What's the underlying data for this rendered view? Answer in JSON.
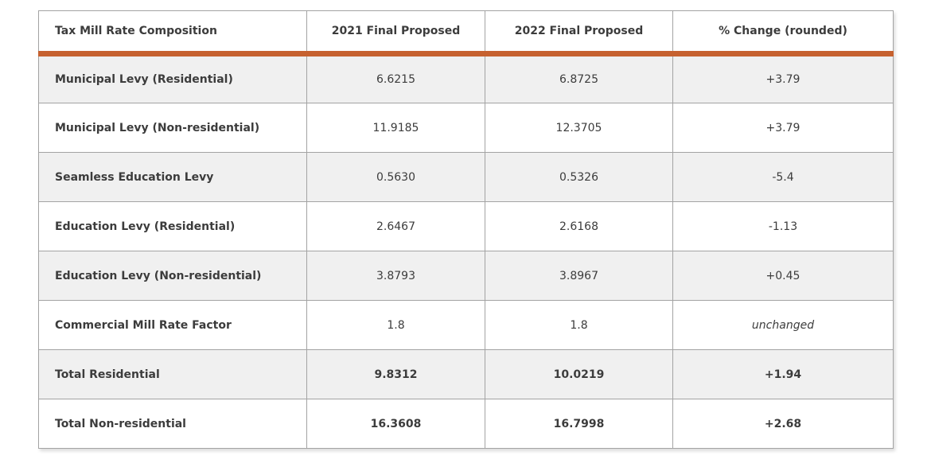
{
  "chart_data": {
    "type": "table",
    "columns": [
      "Tax Mill Rate Composition",
      "2021 Final Proposed",
      "2022 Final Proposed",
      "% Change (rounded)"
    ],
    "rows": [
      {
        "label": "Municipal Levy (Residential)",
        "proposed_2021": "6.6215",
        "proposed_2022": "6.8725",
        "change": "+3.79",
        "emphasis": false,
        "change_italic": false
      },
      {
        "label": "Municipal Levy (Non-residential)",
        "proposed_2021": "11.9185",
        "proposed_2022": "12.3705",
        "change": "+3.79",
        "emphasis": false,
        "change_italic": false
      },
      {
        "label": "Seamless Education Levy",
        "proposed_2021": "0.5630",
        "proposed_2022": "0.5326",
        "change": "-5.4",
        "emphasis": false,
        "change_italic": false
      },
      {
        "label": "Education Levy (Residential)",
        "proposed_2021": "2.6467",
        "proposed_2022": "2.6168",
        "change": "-1.13",
        "emphasis": false,
        "change_italic": false
      },
      {
        "label": "Education Levy (Non-residential)",
        "proposed_2021": "3.8793",
        "proposed_2022": "3.8967",
        "change": "+0.45",
        "emphasis": false,
        "change_italic": false
      },
      {
        "label": "Commercial Mill Rate Factor",
        "proposed_2021": "1.8",
        "proposed_2022": "1.8",
        "change": "unchanged",
        "emphasis": false,
        "change_italic": true
      },
      {
        "label": "Total Residential",
        "proposed_2021": "9.8312",
        "proposed_2022": "10.0219",
        "change": "+1.94",
        "emphasis": true,
        "change_italic": false
      },
      {
        "label": "Total Non-residential",
        "proposed_2021": "16.3608",
        "proposed_2022": "16.7998",
        "change": "+2.68",
        "emphasis": true,
        "change_italic": false
      }
    ],
    "legend": "none",
    "grid": "full-borders"
  },
  "colors": {
    "accent_bar": "#C6612F",
    "row_alt_bg": "#F0F0F0",
    "border": "#A3A3A3",
    "text": "#3C3C3C"
  }
}
